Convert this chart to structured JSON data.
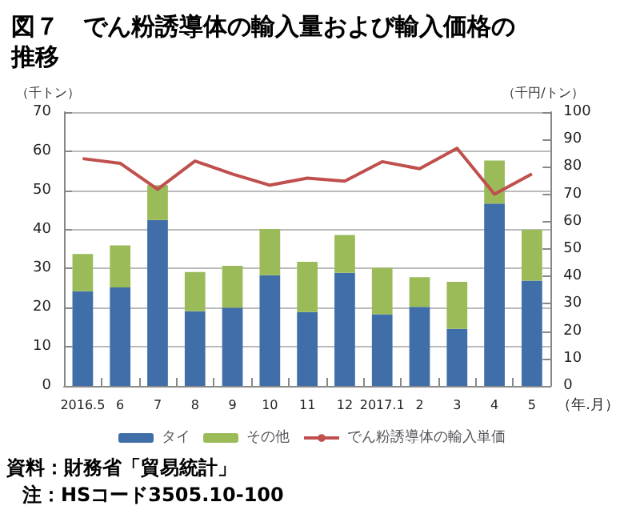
{
  "chart_data": {
    "type": "bar",
    "title": "図７　でん粉誘導体の輸入量および輸入価格の推移",
    "ylabel": "（千トン）",
    "y2label": "（千円/トン）",
    "xlabel": "（年.月）",
    "categories": [
      "2016.5",
      "6",
      "7",
      "8",
      "9",
      "10",
      "11",
      "12",
      "2017.1",
      "2",
      "3",
      "4",
      "5"
    ],
    "stacked": true,
    "series": [
      {
        "name": "タイ",
        "color": "#3f6ea8",
        "values": [
          24.2,
          25.2,
          42.4,
          19.1,
          20,
          28.3,
          18.9,
          28.9,
          18.3,
          20.2,
          14.6,
          46.6,
          26.9
        ]
      },
      {
        "name": "その他",
        "color": "#9bbb59",
        "values": [
          9.5,
          10.7,
          8.9,
          10,
          10.7,
          11.8,
          12.8,
          9.7,
          11.9,
          7.6,
          12,
          11,
          13
        ]
      },
      {
        "name": "でん粉誘導体の輸入単価",
        "type": "line",
        "axis": "y2",
        "color": "#c0504d",
        "values": [
          83,
          81.3,
          71.8,
          82.1,
          77.4,
          73.3,
          75.9,
          74.8,
          81.9,
          79.3,
          86.8,
          70,
          77.4
        ]
      }
    ],
    "ylim": [
      0,
      70
    ],
    "yticks": [
      0,
      10,
      20,
      30,
      40,
      50,
      60,
      70
    ],
    "y2lim": [
      0,
      100
    ],
    "y2ticks": [
      0,
      10,
      20,
      30,
      40,
      50,
      60,
      70,
      80,
      90,
      100
    ],
    "grid": "y",
    "legend": "bottom",
    "marker": "none",
    "line_style": "solid",
    "annotations": [
      "資料：財務省「貿易統計」",
      "注：HSコード3505.10-100"
    ]
  }
}
